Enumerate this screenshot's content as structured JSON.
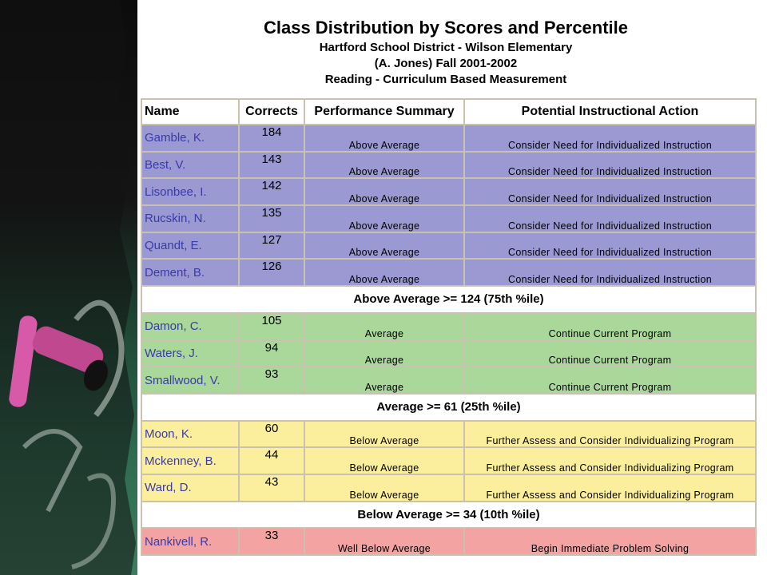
{
  "header": {
    "title": "Class Distribution by Scores and Percentile",
    "subtitle_1": "Hartford School District - Wilson Elementary",
    "subtitle_2": "(A. Jones) Fall 2001-2002",
    "subtitle_3": "Reading - Curriculum Based Measurement"
  },
  "table": {
    "columns": [
      "Name",
      "Corrects",
      "Performance Summary",
      "Potential Instructional Action"
    ],
    "groups": [
      {
        "color": "#9a99d2",
        "rows": [
          {
            "name": "Gamble, K.",
            "score": "184",
            "summary": "Above Average",
            "action": "Consider Need for Individualized Instruction"
          },
          {
            "name": "Best, V.",
            "score": "143",
            "summary": "Above Average",
            "action": "Consider Need for Individualized Instruction"
          },
          {
            "name": "Lisonbee, I.",
            "score": "142",
            "summary": "Above Average",
            "action": "Consider Need for Individualized Instruction"
          },
          {
            "name": "Rucskin, N.",
            "score": "135",
            "summary": "Above Average",
            "action": "Consider Need for Individualized Instruction"
          },
          {
            "name": "Quandt, E.",
            "score": "127",
            "summary": "Above Average",
            "action": "Consider Need for Individualized Instruction"
          },
          {
            "name": "Dement, B.",
            "score": "126",
            "summary": "Above Average",
            "action": "Consider Need for Individualized Instruction"
          }
        ],
        "threshold": "Above Average >= 124 (75th %ile)"
      },
      {
        "color": "#a9d89a",
        "rows": [
          {
            "name": "Damon, C.",
            "score": "105",
            "summary": "Average",
            "action": "Continue Current Program"
          },
          {
            "name": "Waters, J.",
            "score": "94",
            "summary": "Average",
            "action": "Continue Current Program"
          },
          {
            "name": "Smallwood, V.",
            "score": "93",
            "summary": "Average",
            "action": "Continue Current Program"
          }
        ],
        "threshold": "Average >= 61 (25th %ile)"
      },
      {
        "color": "#fbef9e",
        "rows": [
          {
            "name": "Moon, K.",
            "score": "60",
            "summary": "Below Average",
            "action": "Further Assess and Consider Individualizing Program"
          },
          {
            "name": "Mckenney, B.",
            "score": "44",
            "summary": "Below Average",
            "action": "Further Assess and Consider Individualizing Program"
          },
          {
            "name": "Ward, D.",
            "score": "43",
            "summary": "Below Average",
            "action": "Further Assess and Consider Individualizing Program"
          }
        ],
        "threshold": "Below Average >= 34 (10th %ile)"
      },
      {
        "color": "#f4a3a3",
        "rows": [
          {
            "name": "Nankivell, R.",
            "score": "33",
            "summary": "Well Below Average",
            "action": "Begin Immediate Problem Solving"
          }
        ]
      }
    ]
  }
}
